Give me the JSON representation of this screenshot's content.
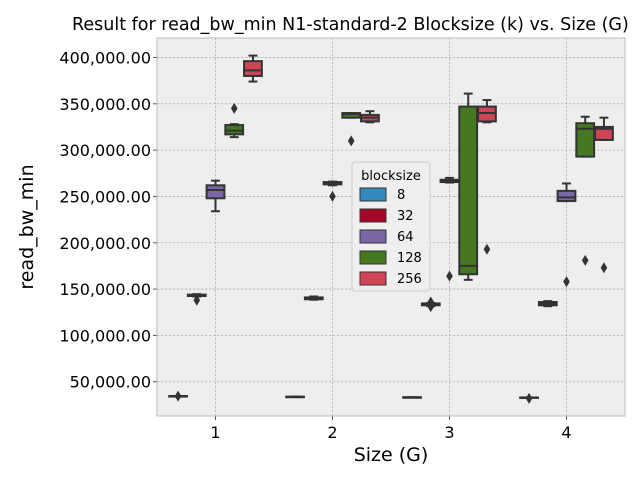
{
  "chart_data": {
    "type": "box",
    "title": "Result for read_bw_min N1-standard-2 Blocksize (k) vs. Size (G)",
    "xlabel": "Size (G)",
    "ylabel": "read_bw_min",
    "categories": [
      "1",
      "2",
      "3",
      "4"
    ],
    "ylim": [
      13000,
      421000
    ],
    "yticks": [
      50000,
      100000,
      150000,
      200000,
      250000,
      300000,
      350000,
      400000
    ],
    "ytick_labels": [
      "50,000.00",
      "100,000.00",
      "150,000.00",
      "200,000.00",
      "250,000.00",
      "300,000.00",
      "350,000.00",
      "400,000.00"
    ],
    "grid": true,
    "legend": {
      "title": "blocksize",
      "placement": "center"
    },
    "series": [
      {
        "name": "8",
        "color": "#348ABD",
        "boxes": [
          {
            "whislo": 34500,
            "q1": 34500,
            "med": 34500,
            "q3": 34500,
            "whishi": 34500,
            "fliers": [
              34500
            ]
          },
          {
            "whislo": 33800,
            "q1": 33800,
            "med": 33800,
            "q3": 33800,
            "whishi": 33800,
            "fliers": []
          },
          {
            "whislo": 33200,
            "q1": 33200,
            "med": 33200,
            "q3": 33200,
            "whishi": 33200,
            "fliers": []
          },
          {
            "whislo": 33000,
            "q1": 33000,
            "med": 33000,
            "q3": 33000,
            "whishi": 33000,
            "fliers": [
              32000
            ]
          }
        ]
      },
      {
        "name": "32",
        "color": "#A60628",
        "boxes": [
          {
            "whislo": 142000,
            "q1": 142500,
            "med": 143000,
            "q3": 144000,
            "whishi": 144500,
            "fliers": [
              138000
            ]
          },
          {
            "whislo": 138500,
            "q1": 139000,
            "med": 139500,
            "q3": 141000,
            "whishi": 142000,
            "fliers": []
          },
          {
            "whislo": 131500,
            "q1": 132500,
            "med": 133500,
            "q3": 134500,
            "whishi": 135000,
            "fliers": [
              131000,
              136000
            ]
          },
          {
            "whislo": 131500,
            "q1": 132500,
            "med": 134000,
            "q3": 136000,
            "whishi": 137000,
            "fliers": []
          }
        ]
      },
      {
        "name": "64",
        "color": "#7A68A6",
        "boxes": [
          {
            "whislo": 234000,
            "q1": 248000,
            "med": 257000,
            "q3": 262000,
            "whishi": 267000,
            "fliers": []
          },
          {
            "whislo": 262000,
            "q1": 263000,
            "med": 264500,
            "q3": 265500,
            "whishi": 266000,
            "fliers": [
              250000
            ]
          },
          {
            "whislo": 265000,
            "q1": 265500,
            "med": 266500,
            "q3": 268000,
            "whishi": 270000,
            "fliers": [
              164000
            ]
          },
          {
            "whislo": 245000,
            "q1": 245000,
            "med": 249000,
            "q3": 256000,
            "whishi": 264000,
            "fliers": [
              158000
            ]
          }
        ]
      },
      {
        "name": "128",
        "color": "#467821",
        "boxes": [
          {
            "whislo": 314000,
            "q1": 317000,
            "med": 321000,
            "q3": 327000,
            "whishi": 328000,
            "fliers": [
              345000
            ]
          },
          {
            "whislo": 335000,
            "q1": 335000,
            "med": 339000,
            "q3": 340000,
            "whishi": 340000,
            "fliers": [
              310000
            ]
          },
          {
            "whislo": 160000,
            "q1": 166000,
            "med": 175000,
            "q3": 347000,
            "whishi": 361000,
            "fliers": []
          },
          {
            "whislo": 293000,
            "q1": 293000,
            "med": 323000,
            "q3": 329000,
            "whishi": 336000,
            "fliers": [
              181000
            ]
          }
        ]
      },
      {
        "name": "256",
        "color": "#CF4457",
        "boxes": [
          {
            "whislo": 374000,
            "q1": 380000,
            "med": 386000,
            "q3": 396000,
            "whishi": 402000,
            "fliers": []
          },
          {
            "whislo": 330000,
            "q1": 331000,
            "med": 335000,
            "q3": 338000,
            "whishi": 342000,
            "fliers": []
          },
          {
            "whislo": 330000,
            "q1": 331000,
            "med": 340000,
            "q3": 347000,
            "whishi": 354000,
            "fliers": [
              193000
            ]
          },
          {
            "whislo": 311000,
            "q1": 311000,
            "med": 323000,
            "q3": 325000,
            "whishi": 335000,
            "fliers": [
              173000
            ]
          }
        ]
      }
    ]
  }
}
